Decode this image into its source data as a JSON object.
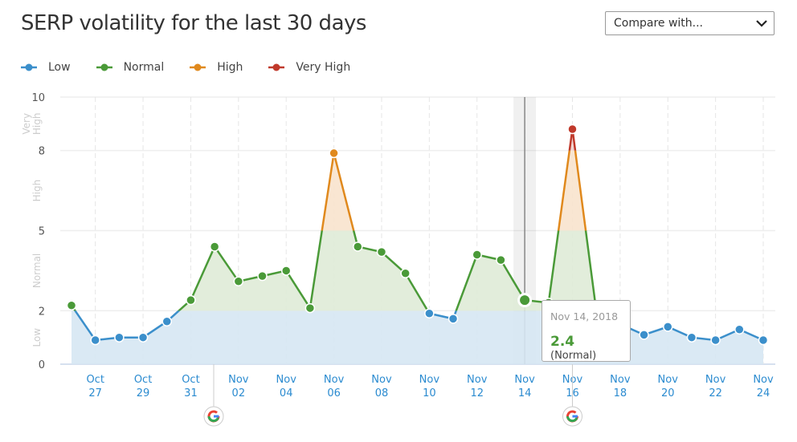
{
  "title": "SERP volatility for the last 30 days",
  "compare": {
    "label": "Compare with..."
  },
  "legend": [
    {
      "label": "Low",
      "color": "#3b8fcb"
    },
    {
      "label": "Normal",
      "color": "#4a9a38"
    },
    {
      "label": "High",
      "color": "#e0891d"
    },
    {
      "label": "Very High",
      "color": "#c0392b"
    }
  ],
  "tooltip": {
    "date": "Nov 14, 2018",
    "value": "2.4",
    "band": "(Normal)"
  },
  "chart_data": {
    "type": "line",
    "title": "SERP volatility for the last 30 days",
    "ylim": [
      0,
      10
    ],
    "yticks": [
      0,
      2,
      5,
      8,
      10
    ],
    "bands": [
      {
        "label": "Low",
        "from": 0,
        "to": 2,
        "color": "#3b8fcb",
        "fill": "#d6e7f3"
      },
      {
        "label": "Normal",
        "from": 2,
        "to": 5,
        "color": "#4a9a38",
        "fill": "#dfebd7"
      },
      {
        "label": "High",
        "from": 5,
        "to": 8,
        "color": "#e0891d",
        "fill": "#f8e3cd"
      },
      {
        "label": "Very High",
        "from": 8,
        "to": 10,
        "color": "#c0392b",
        "fill": "#f1d3cf"
      }
    ],
    "x": [
      "Oct 26",
      "Oct 27",
      "Oct 28",
      "Oct 29",
      "Oct 30",
      "Oct 31",
      "Nov 01",
      "Nov 02",
      "Nov 03",
      "Nov 04",
      "Nov 05",
      "Nov 06",
      "Nov 07",
      "Nov 08",
      "Nov 09",
      "Nov 10",
      "Nov 11",
      "Nov 12",
      "Nov 13",
      "Nov 14",
      "Nov 15",
      "Nov 16",
      "Nov 17",
      "Nov 18",
      "Nov 19",
      "Nov 20",
      "Nov 21",
      "Nov 22",
      "Nov 23",
      "Nov 24"
    ],
    "values": [
      2.2,
      0.9,
      1.0,
      1.0,
      1.6,
      2.4,
      4.4,
      3.1,
      3.3,
      3.5,
      2.1,
      7.9,
      4.4,
      4.2,
      3.4,
      1.9,
      1.7,
      4.1,
      3.9,
      2.4,
      2.3,
      8.8,
      2.0,
      1.5,
      1.1,
      1.4,
      1.0,
      0.9,
      1.3,
      0.9
    ],
    "xtick_labels": [
      [
        "Oct",
        "27"
      ],
      [
        "Oct",
        "29"
      ],
      [
        "Oct",
        "31"
      ],
      [
        "Nov",
        "02"
      ],
      [
        "Nov",
        "04"
      ],
      [
        "Nov",
        "06"
      ],
      [
        "Nov",
        "08"
      ],
      [
        "Nov",
        "10"
      ],
      [
        "Nov",
        "12"
      ],
      [
        "Nov",
        "14"
      ],
      [
        "Nov",
        "16"
      ],
      [
        "Nov",
        "18"
      ],
      [
        "Nov",
        "20"
      ],
      [
        "Nov",
        "22"
      ],
      [
        "Nov",
        "24"
      ]
    ],
    "google_updates": [
      "Nov 01",
      "Nov 16"
    ],
    "highlighted": "Nov 14"
  }
}
